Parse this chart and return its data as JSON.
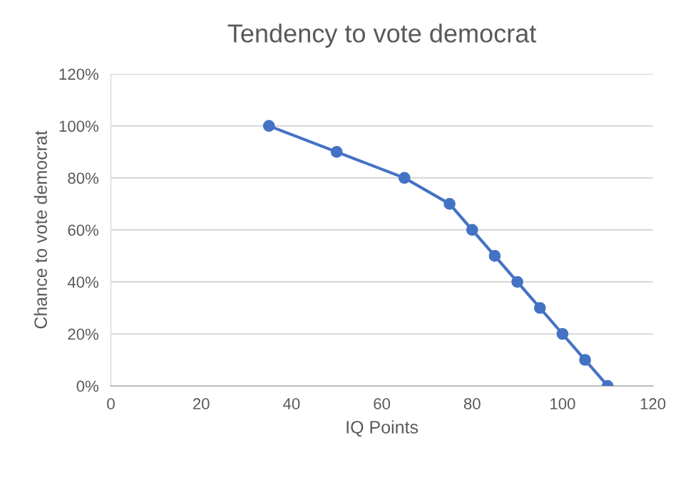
{
  "chart_data": {
    "type": "line",
    "title": "Tendency to vote democrat",
    "xlabel": "IQ Points",
    "ylabel": "Chance to vote democrat",
    "x": [
      35,
      50,
      65,
      75,
      80,
      85,
      90,
      95,
      100,
      105,
      110
    ],
    "values": [
      100,
      90,
      80,
      70,
      60,
      50,
      40,
      30,
      20,
      10,
      0
    ],
    "color": "#4472c4",
    "marker": "circle",
    "line_style": "solid",
    "xlim": [
      0,
      120
    ],
    "xticks": [
      0,
      20,
      40,
      60,
      80,
      100,
      120
    ],
    "ylim": [
      0,
      120
    ],
    "yticks": [
      {
        "value": 0,
        "label": "0%"
      },
      {
        "value": 20,
        "label": "20%"
      },
      {
        "value": 40,
        "label": "40%"
      },
      {
        "value": 60,
        "label": "60%"
      },
      {
        "value": 80,
        "label": "80%"
      },
      {
        "value": 100,
        "label": "100%"
      },
      {
        "value": 120,
        "label": "120%"
      }
    ],
    "grid": "y"
  }
}
